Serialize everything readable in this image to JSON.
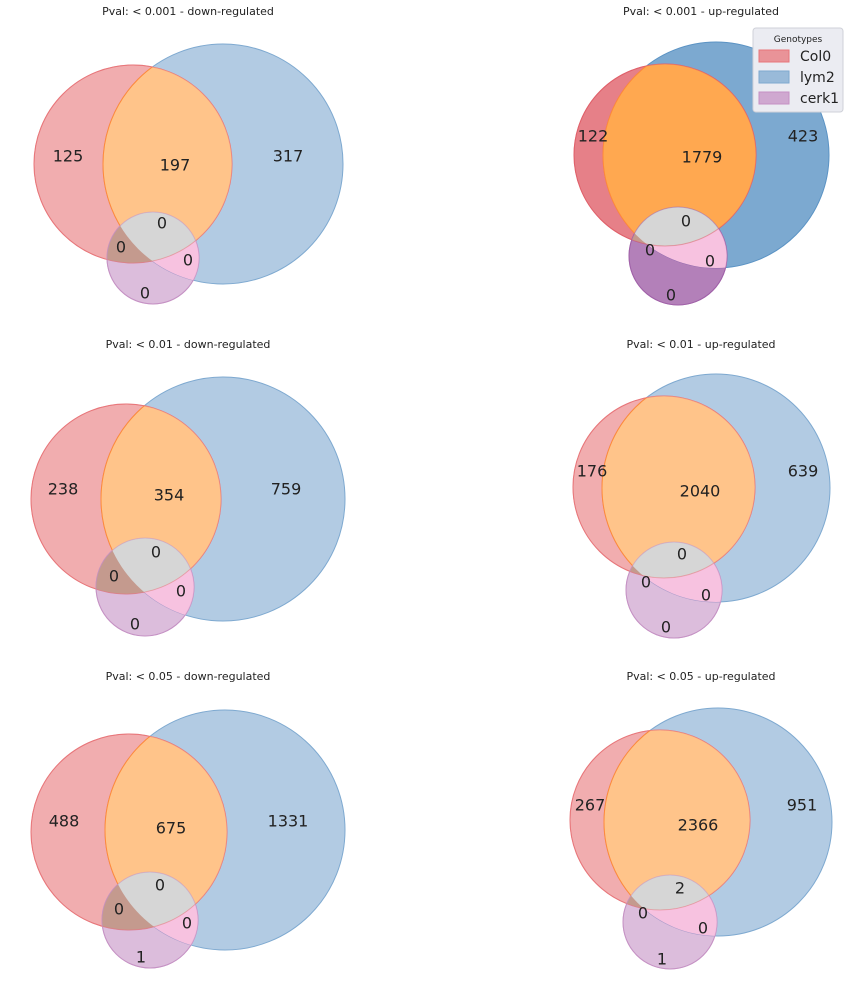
{
  "chart_data": [
    {
      "type": "venn",
      "title": "Pval: < 0.001 - down-regulated",
      "sets": [
        "Col0",
        "lym2",
        "cerk1"
      ],
      "regions": {
        "Col0_only": 125,
        "Col0_lym2": 197,
        "lym2_only": 317,
        "Col0_lym2_cerk1": 0,
        "Col0_cerk1": 0,
        "lym2_cerk1": 0,
        "cerk1_only": 0
      }
    },
    {
      "type": "venn",
      "title": "Pval: < 0.001 - up-regulated",
      "sets": [
        "Col0",
        "lym2",
        "cerk1"
      ],
      "regions": {
        "Col0_only": 122,
        "Col0_lym2": 1779,
        "lym2_only": 423,
        "Col0_lym2_cerk1": 0,
        "Col0_cerk1": 0,
        "lym2_cerk1": 0,
        "cerk1_only": 0
      }
    },
    {
      "type": "venn",
      "title": "Pval: < 0.01 - down-regulated",
      "sets": [
        "Col0",
        "lym2",
        "cerk1"
      ],
      "regions": {
        "Col0_only": 238,
        "Col0_lym2": 354,
        "lym2_only": 759,
        "Col0_lym2_cerk1": 0,
        "Col0_cerk1": 0,
        "lym2_cerk1": 0,
        "cerk1_only": 0
      }
    },
    {
      "type": "venn",
      "title": "Pval: < 0.01 - up-regulated",
      "sets": [
        "Col0",
        "lym2",
        "cerk1"
      ],
      "regions": {
        "Col0_only": 176,
        "Col0_lym2": 2040,
        "lym2_only": 639,
        "Col0_lym2_cerk1": 0,
        "Col0_cerk1": 0,
        "lym2_cerk1": 0,
        "cerk1_only": 0
      }
    },
    {
      "type": "venn",
      "title": "Pval: < 0.05 - down-regulated",
      "sets": [
        "Col0",
        "lym2",
        "cerk1"
      ],
      "regions": {
        "Col0_only": 488,
        "Col0_lym2": 675,
        "lym2_only": 1331,
        "Col0_lym2_cerk1": 0,
        "Col0_cerk1": 0,
        "lym2_cerk1": 0,
        "cerk1_only": 1
      }
    },
    {
      "type": "venn",
      "title": "Pval: < 0.05 - up-regulated",
      "sets": [
        "Col0",
        "lym2",
        "cerk1"
      ],
      "regions": {
        "Col0_only": 267,
        "Col0_lym2": 2366,
        "lym2_only": 951,
        "Col0_lym2_cerk1": 2,
        "Col0_cerk1": 0,
        "lym2_cerk1": 0,
        "cerk1_only": 1
      }
    }
  ],
  "legend": {
    "title": "Genotypes",
    "placement": "top-right",
    "entries": [
      {
        "label": "Col0",
        "color": "#e8767a"
      },
      {
        "label": "lym2",
        "color": "#7ea9d0"
      },
      {
        "label": "cerk1",
        "color": "#c591c4"
      }
    ]
  },
  "colors": {
    "col0": "#e8767a",
    "lym2": "#7ea9d0",
    "cerk1": "#c591c4",
    "col0_lym2": "#ffc48a",
    "col0_cerk1": "#c49a8e",
    "lym2_cerk1": "#f7c2e0",
    "all_three": "#d6d6d6",
    "col0_strong": "#e0606a",
    "lym2_strong": "#5b93c4",
    "cerk1_strong": "#a060a8",
    "col0_lym2_strong": "#ffa850"
  }
}
